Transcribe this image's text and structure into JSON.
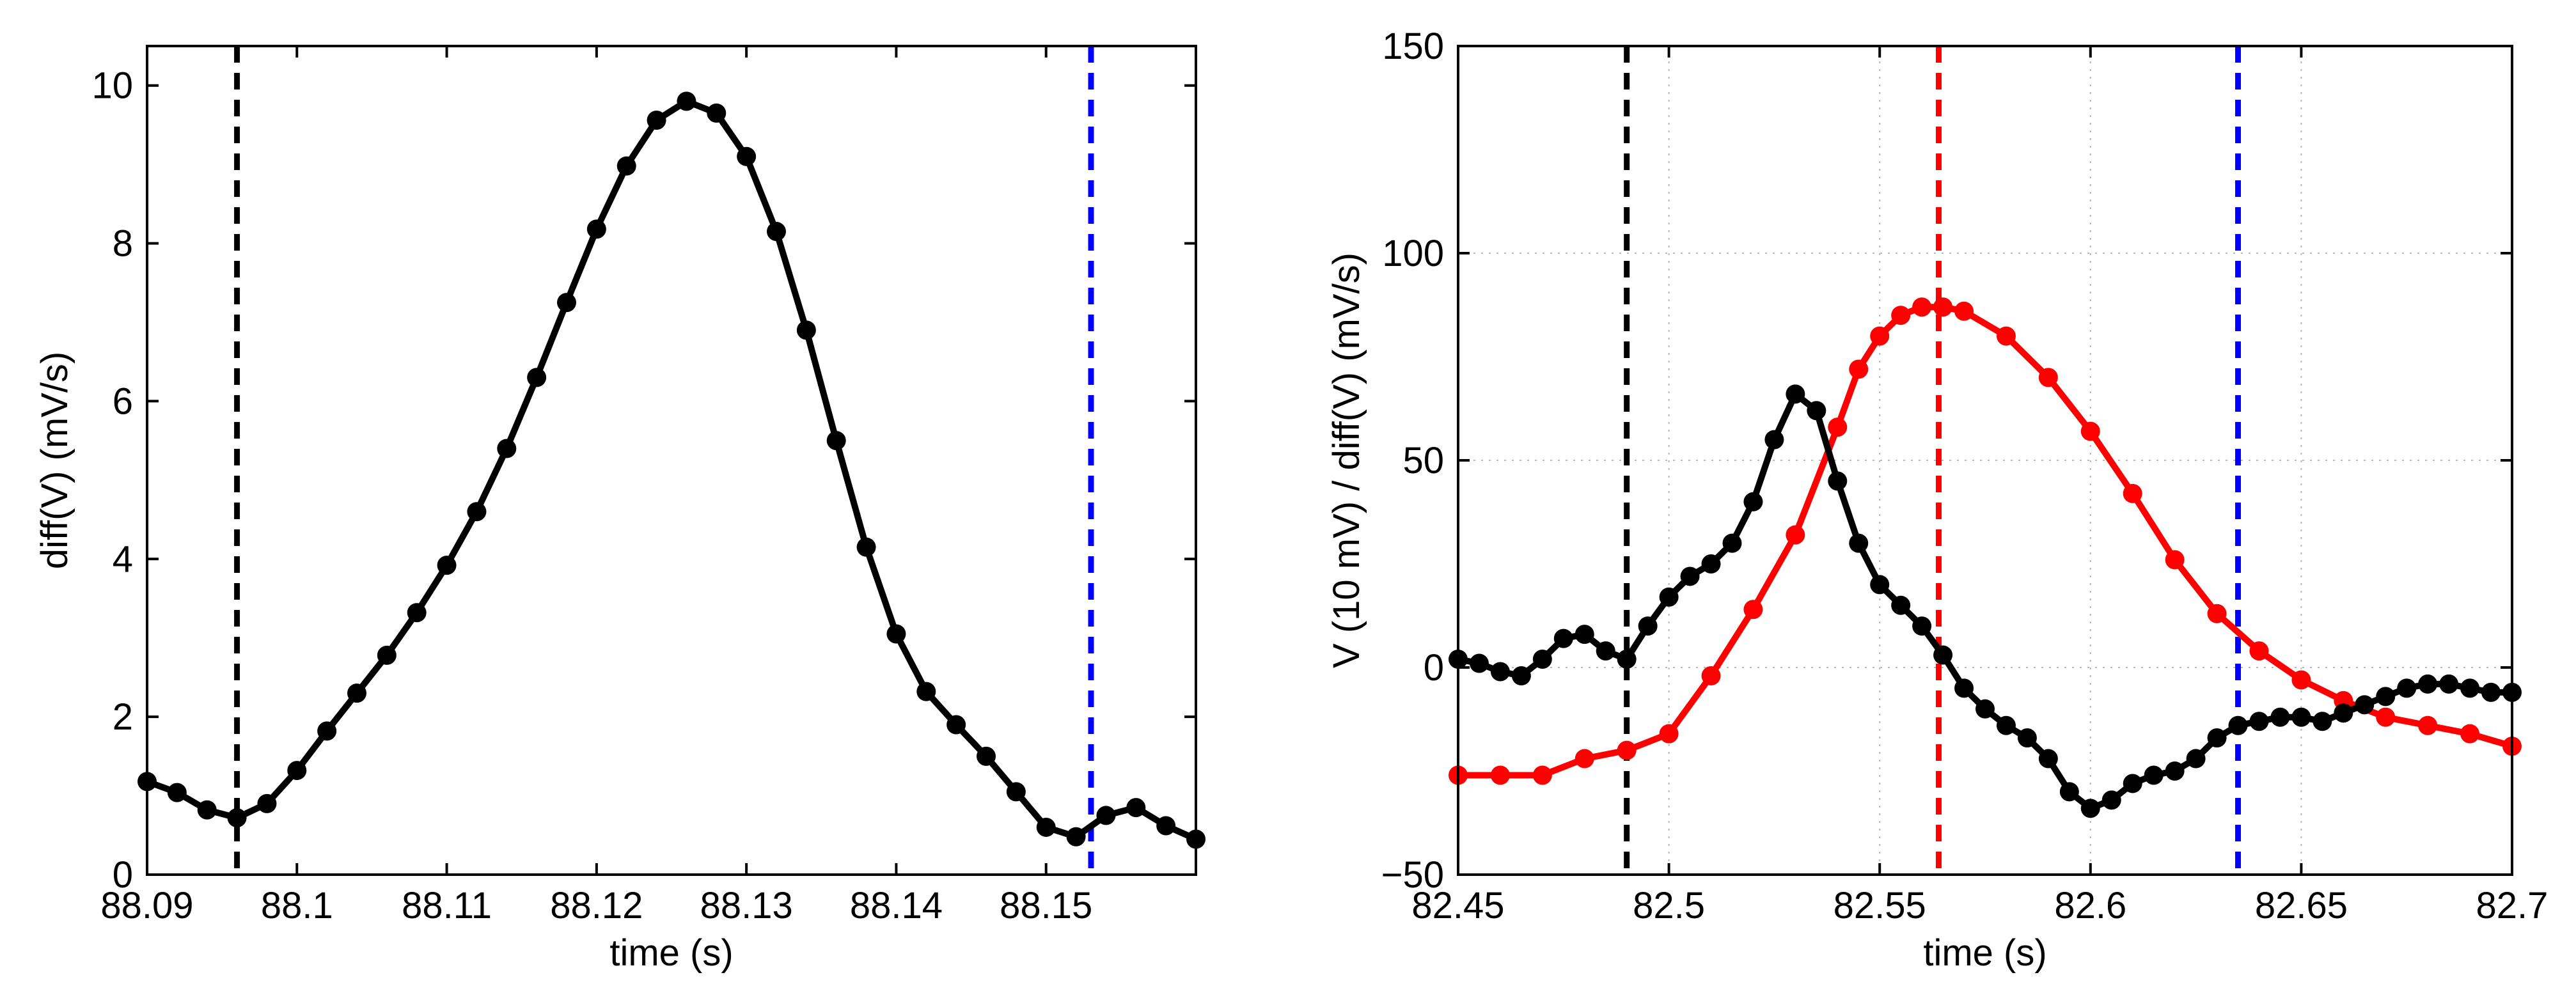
{
  "chart_data": [
    {
      "type": "line",
      "xlabel": "time (s)",
      "ylabel": "diff(V) (mV/s)",
      "xlim": [
        88.09,
        88.16
      ],
      "ylim": [
        0,
        10.5
      ],
      "xticks": [
        88.09,
        88.1,
        88.11,
        88.12,
        88.13,
        88.14,
        88.15
      ],
      "xtick_labels": [
        "88.09",
        "88.1",
        "88.11",
        "88.12",
        "88.13",
        "88.14",
        "88.15"
      ],
      "yticks": [
        0,
        2,
        4,
        6,
        8,
        10
      ],
      "ytick_labels": [
        "0",
        "2",
        "4",
        "6",
        "8",
        "10"
      ],
      "grid": false,
      "series": [
        {
          "name": "diff(V)",
          "color": "#000000",
          "marker": "circle",
          "x": [
            88.09,
            88.092,
            88.094,
            88.096,
            88.098,
            88.1,
            88.102,
            88.104,
            88.106,
            88.108,
            88.11,
            88.112,
            88.114,
            88.116,
            88.118,
            88.12,
            88.122,
            88.124,
            88.126,
            88.128,
            88.13,
            88.132,
            88.134,
            88.136,
            88.138,
            88.14,
            88.142,
            88.144,
            88.146,
            88.148,
            88.15,
            88.152,
            88.154,
            88.156,
            88.158,
            88.16
          ],
          "y": [
            1.18,
            1.04,
            0.82,
            0.72,
            0.9,
            1.32,
            1.82,
            2.3,
            2.78,
            3.32,
            3.92,
            4.6,
            5.4,
            6.3,
            7.25,
            8.18,
            8.98,
            9.56,
            9.8,
            9.65,
            9.1,
            8.15,
            6.9,
            5.5,
            4.15,
            3.05,
            2.32,
            1.9,
            1.5,
            1.05,
            0.6,
            0.48,
            0.75,
            0.85,
            0.62,
            0.45
          ]
        }
      ],
      "vlines": [
        {
          "x": 88.096,
          "color": "#000000",
          "style": "dashed"
        },
        {
          "x": 88.153,
          "color": "#0000ff",
          "style": "dashed"
        }
      ]
    },
    {
      "type": "line",
      "xlabel": "time (s)",
      "ylabel": "V (10 mV) / diff(V) (mV/s)",
      "xlim": [
        82.45,
        82.7
      ],
      "ylim": [
        -50,
        150
      ],
      "xticks": [
        82.45,
        82.5,
        82.55,
        82.6,
        82.65,
        82.7
      ],
      "xtick_labels": [
        "82.45",
        "82.5",
        "82.55",
        "82.6",
        "82.65",
        "82.7"
      ],
      "yticks": [
        -50,
        0,
        50,
        100,
        150
      ],
      "ytick_labels": [
        "−50",
        "0",
        "50",
        "100",
        "150"
      ],
      "grid": true,
      "series": [
        {
          "name": "V (10 mV)",
          "color": "#ff0000",
          "marker": "circle",
          "x": [
            82.45,
            82.46,
            82.47,
            82.48,
            82.49,
            82.5,
            82.51,
            82.52,
            82.53,
            82.54,
            82.545,
            82.55,
            82.555,
            82.56,
            82.565,
            82.57,
            82.58,
            82.59,
            82.6,
            82.61,
            82.62,
            82.63,
            82.64,
            82.65,
            82.66,
            82.67,
            82.68,
            82.69,
            82.7
          ],
          "y": [
            -26,
            -26,
            -26,
            -22,
            -20,
            -16,
            -2,
            14,
            32,
            58,
            72,
            80,
            85,
            87,
            87,
            86,
            80,
            70,
            57,
            42,
            26,
            13,
            4,
            -3,
            -8,
            -12,
            -14,
            -16,
            -19
          ]
        },
        {
          "name": "diff(V) (mV/s)",
          "color": "#000000",
          "marker": "circle",
          "x": [
            82.45,
            82.455,
            82.46,
            82.465,
            82.47,
            82.475,
            82.48,
            82.485,
            82.49,
            82.495,
            82.5,
            82.505,
            82.51,
            82.515,
            82.52,
            82.525,
            82.53,
            82.535,
            82.54,
            82.545,
            82.55,
            82.555,
            82.56,
            82.565,
            82.57,
            82.575,
            82.58,
            82.585,
            82.59,
            82.595,
            82.6,
            82.605,
            82.61,
            82.615,
            82.62,
            82.625,
            82.63,
            82.635,
            82.64,
            82.645,
            82.65,
            82.655,
            82.66,
            82.665,
            82.67,
            82.675,
            82.68,
            82.685,
            82.69,
            82.695,
            82.7
          ],
          "y": [
            2,
            1,
            -1,
            -2,
            2,
            7,
            8,
            4,
            2,
            10,
            17,
            22,
            25,
            30,
            40,
            55,
            66,
            62,
            45,
            30,
            20,
            15,
            10,
            3,
            -5,
            -10,
            -14,
            -17,
            -22,
            -30,
            -34,
            -32,
            -28,
            -26,
            -25,
            -22,
            -17,
            -14,
            -13,
            -12,
            -12,
            -13,
            -11,
            -9,
            -7,
            -5,
            -4,
            -4,
            -5,
            -6,
            -6
          ]
        }
      ],
      "vlines": [
        {
          "x": 82.49,
          "color": "#000000",
          "style": "dashed"
        },
        {
          "x": 82.564,
          "color": "#ff0000",
          "style": "dashed"
        },
        {
          "x": 82.635,
          "color": "#0000ff",
          "style": "dashed"
        }
      ]
    }
  ]
}
